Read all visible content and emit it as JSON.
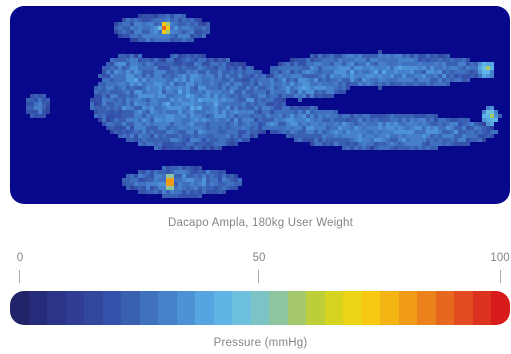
{
  "chart_data": {
    "type": "heatmap",
    "title": "Dacapo Ampla, 180kg User Weight",
    "background_color": "#08088c",
    "colorbar": {
      "label": "Pressure (mmHg)",
      "range": [
        0,
        100
      ],
      "ticks": [
        {
          "value": 0,
          "label": "0"
        },
        {
          "value": 50,
          "label": "50"
        },
        {
          "value": 100,
          "label": "100"
        }
      ],
      "colors": [
        "#22246a",
        "#272c7a",
        "#2c3488",
        "#303d94",
        "#32469f",
        "#3452a9",
        "#3a60b4",
        "#4070c0",
        "#4680cc",
        "#4e92d6",
        "#56a4e0",
        "#5fb4e6",
        "#6cbfdf",
        "#7cc3c6",
        "#8ec4a0",
        "#a4c86a",
        "#bccf3a",
        "#d6d420",
        "#ecd416",
        "#f6c812",
        "#f4b414",
        "#f09c18",
        "#ec821c",
        "#e6681e",
        "#e04c1e",
        "#dc3220",
        "#d81c1c"
      ]
    },
    "zones": [
      {
        "name": "head",
        "level": 0.28
      },
      {
        "name": "upper-shoulder",
        "level": 0.3,
        "peak": 0.9
      },
      {
        "name": "torso",
        "level": 0.32
      },
      {
        "name": "lower-shoulder",
        "level": 0.3,
        "peak": 0.9
      },
      {
        "name": "upper-leg",
        "level": 0.32
      },
      {
        "name": "lower-leg",
        "level": 0.32
      },
      {
        "name": "upper-heel",
        "level": 0.45,
        "peak": 0.6
      },
      {
        "name": "lower-heel",
        "level": 0.45,
        "peak": 0.6
      }
    ]
  }
}
